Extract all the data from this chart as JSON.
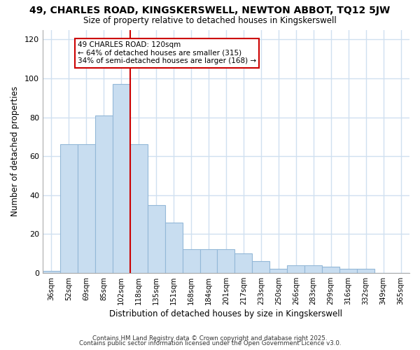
{
  "title": "49, CHARLES ROAD, KINGSKERSWELL, NEWTON ABBOT, TQ12 5JW",
  "subtitle": "Size of property relative to detached houses in Kingskerswell",
  "xlabel": "Distribution of detached houses by size in Kingskerswell",
  "ylabel": "Number of detached properties",
  "bar_color": "#c8ddf0",
  "bar_edgecolor": "#93b8d8",
  "vline_color": "#cc0000",
  "annotation_text": "49 CHARLES ROAD: 120sqm\n← 64% of detached houses are smaller (315)\n34% of semi-detached houses are larger (168) →",
  "categories": [
    "36sqm",
    "52sqm",
    "69sqm",
    "85sqm",
    "102sqm",
    "118sqm",
    "135sqm",
    "151sqm",
    "168sqm",
    "184sqm",
    "201sqm",
    "217sqm",
    "233sqm",
    "250sqm",
    "266sqm",
    "283sqm",
    "299sqm",
    "316sqm",
    "332sqm",
    "349sqm",
    "365sqm"
  ],
  "values": [
    1,
    66,
    66,
    81,
    97,
    66,
    35,
    26,
    12,
    12,
    12,
    10,
    6,
    2,
    4,
    4,
    3,
    2,
    2,
    0,
    0
  ],
  "ylim": [
    0,
    125
  ],
  "yticks": [
    0,
    20,
    40,
    60,
    80,
    100,
    120
  ],
  "vline_bar_idx": 5,
  "footer1": "Contains HM Land Registry data © Crown copyright and database right 2025.",
  "footer2": "Contains public sector information licensed under the Open Government Licence v3.0.",
  "bg_color": "#ffffff",
  "plot_bg_color": "#ffffff",
  "grid_color": "#d0e0f0"
}
